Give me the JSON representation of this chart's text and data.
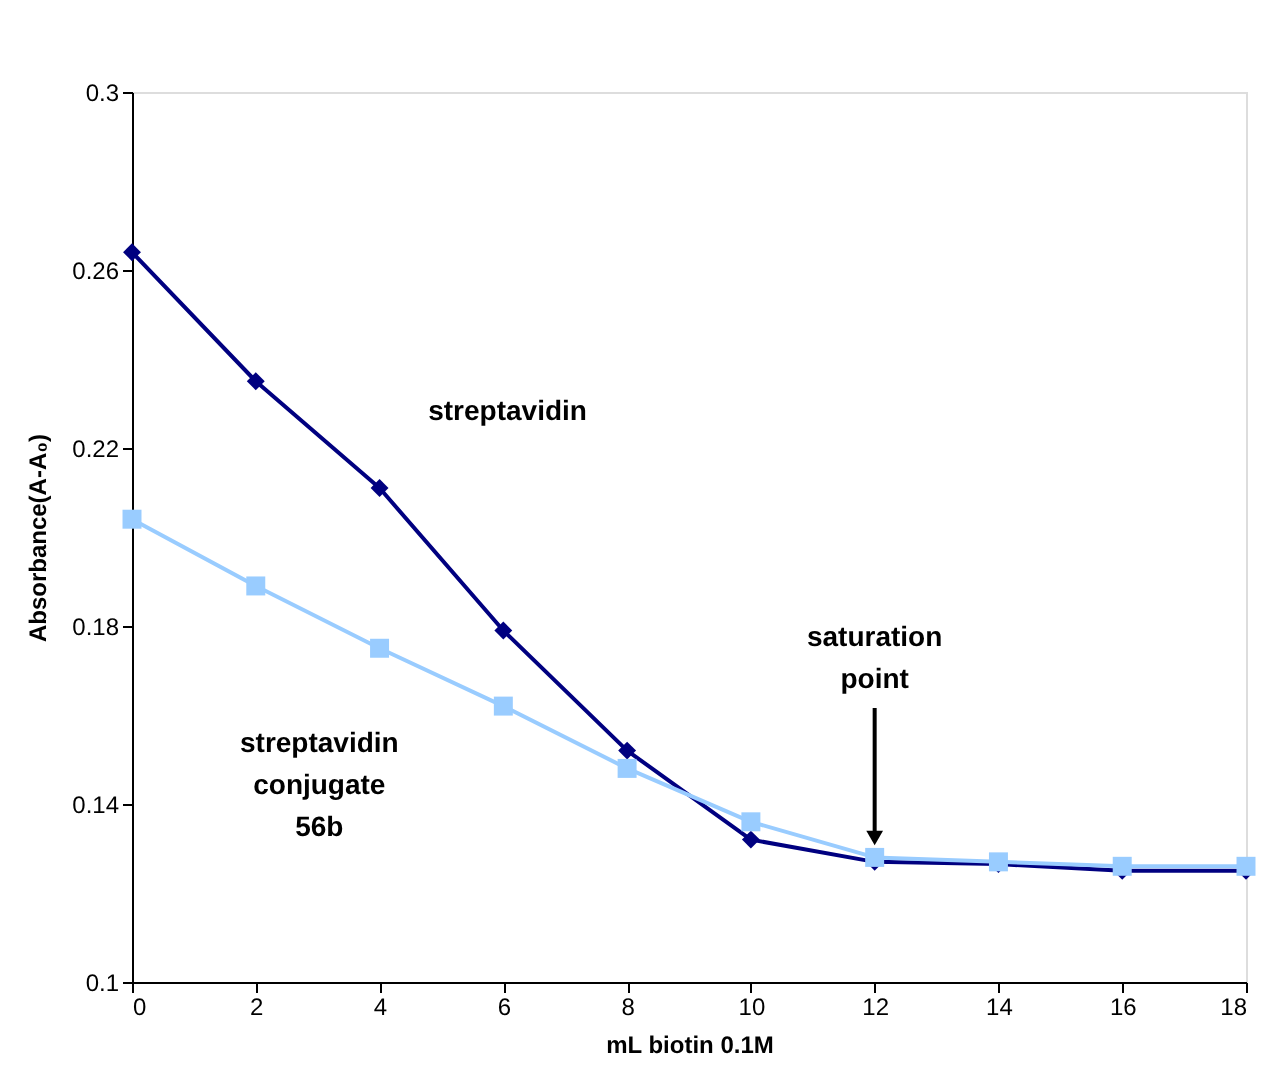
{
  "chart_data": {
    "type": "line",
    "xlabel": "mL biotin 0.1M",
    "ylabel": "Absorbance(A-A₀)",
    "x": [
      0,
      2,
      4,
      6,
      8,
      10,
      12,
      14,
      16,
      18
    ],
    "series": [
      {
        "name": "streptavidin",
        "color": "#000080",
        "marker": "diamond",
        "values": [
          0.264,
          0.235,
          0.211,
          0.179,
          0.152,
          0.132,
          0.127,
          0.1265,
          0.125,
          0.125
        ]
      },
      {
        "name": "streptavidin conjugate 56b",
        "color": "#99ccff",
        "marker": "square",
        "values": [
          0.204,
          0.189,
          0.175,
          0.162,
          0.148,
          0.136,
          0.128,
          0.127,
          0.126,
          0.126
        ]
      }
    ],
    "annotations": [
      {
        "text": "saturation point",
        "x": 12,
        "y": 0.131
      }
    ],
    "xlim": [
      0,
      18
    ],
    "xticks": [
      0,
      2,
      4,
      6,
      8,
      10,
      12,
      14,
      16,
      18
    ],
    "ylim": [
      0.1,
      0.3
    ],
    "yticks": [
      0.1,
      0.14,
      0.18,
      0.22,
      0.26,
      0.3
    ],
    "grid": false,
    "legend": false,
    "line_style": "solid"
  }
}
